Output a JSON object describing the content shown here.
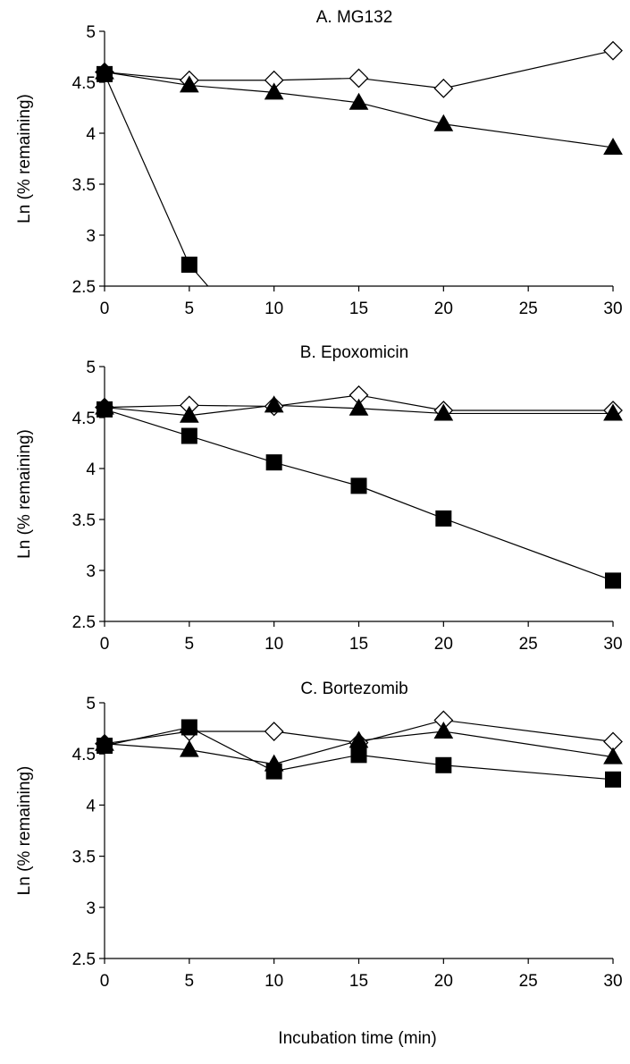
{
  "figure": {
    "x_axis_title": "Incubation time (min)",
    "colors": {
      "line": "#000000",
      "marker_fill_solid": "#000000",
      "marker_fill_open": "#ffffff"
    }
  },
  "chart_data": [
    {
      "type": "line",
      "title": "A.  MG132",
      "xlabel": "",
      "ylabel": "Ln (% remaining)",
      "xlim": [
        0,
        30
      ],
      "ylim": [
        2.5,
        5
      ],
      "x_ticks": [
        0,
        5,
        10,
        15,
        20,
        25,
        30
      ],
      "y_ticks": [
        2.5,
        3,
        3.5,
        4,
        4.5,
        5
      ],
      "y_tick_labels": [
        "2.5",
        "3",
        "3.5",
        "4",
        "4.5",
        "5"
      ],
      "grid": false,
      "series": [
        {
          "marker": "open-diamond",
          "x": [
            0,
            5,
            10,
            15,
            20,
            30
          ],
          "y": [
            4.6,
            4.52,
            4.52,
            4.54,
            4.44,
            4.81
          ]
        },
        {
          "marker": "filled-triangle",
          "x": [
            0,
            5,
            10,
            15,
            20,
            30
          ],
          "y": [
            4.6,
            4.47,
            4.4,
            4.3,
            4.09,
            3.86
          ]
        },
        {
          "marker": "filled-square",
          "x": [
            0,
            5,
            6.1
          ],
          "y": [
            4.58,
            2.71,
            2.5
          ]
        }
      ]
    },
    {
      "type": "line",
      "title": "B.  Epoxomicin",
      "xlabel": "",
      "ylabel": "Ln (% remaining)",
      "xlim": [
        0,
        30
      ],
      "ylim": [
        2.5,
        5
      ],
      "x_ticks": [
        0,
        5,
        10,
        15,
        20,
        25,
        30
      ],
      "y_ticks": [
        2.5,
        3,
        3.5,
        4,
        4.5,
        5
      ],
      "y_tick_labels": [
        "2.5",
        "3",
        "3.5",
        "4",
        "4.5",
        "5"
      ],
      "grid": false,
      "series": [
        {
          "marker": "open-diamond",
          "x": [
            0,
            5,
            10,
            15,
            20,
            30
          ],
          "y": [
            4.6,
            4.62,
            4.61,
            4.72,
            4.57,
            4.57
          ]
        },
        {
          "marker": "filled-triangle",
          "x": [
            0,
            5,
            10,
            15,
            20,
            30
          ],
          "y": [
            4.6,
            4.52,
            4.62,
            4.59,
            4.54,
            4.54
          ]
        },
        {
          "marker": "filled-square",
          "x": [
            0,
            5,
            10,
            15,
            20,
            30
          ],
          "y": [
            4.58,
            4.32,
            4.06,
            3.83,
            3.51,
            2.9
          ]
        }
      ]
    },
    {
      "type": "line",
      "title": "C.  Bortezomib",
      "xlabel": "",
      "ylabel": "Ln (% remaining)",
      "xlim": [
        0,
        30
      ],
      "ylim": [
        2.5,
        5
      ],
      "x_ticks": [
        0,
        5,
        10,
        15,
        20,
        25,
        30
      ],
      "y_ticks": [
        2.5,
        3,
        3.5,
        4,
        4.5,
        5
      ],
      "y_tick_labels": [
        "2.5",
        "3",
        "3.5",
        "4",
        "4.5",
        "5"
      ],
      "grid": false,
      "series": [
        {
          "marker": "open-diamond",
          "x": [
            0,
            5,
            10,
            15,
            20,
            30
          ],
          "y": [
            4.6,
            4.72,
            4.72,
            4.61,
            4.83,
            4.62
          ]
        },
        {
          "marker": "filled-triangle",
          "x": [
            0,
            5,
            10,
            15,
            20,
            30
          ],
          "y": [
            4.6,
            4.54,
            4.4,
            4.63,
            4.72,
            4.47
          ]
        },
        {
          "marker": "filled-square",
          "x": [
            0,
            5,
            10,
            15,
            20,
            30
          ],
          "y": [
            4.58,
            4.76,
            4.33,
            4.49,
            4.39,
            4.25
          ]
        }
      ]
    }
  ]
}
